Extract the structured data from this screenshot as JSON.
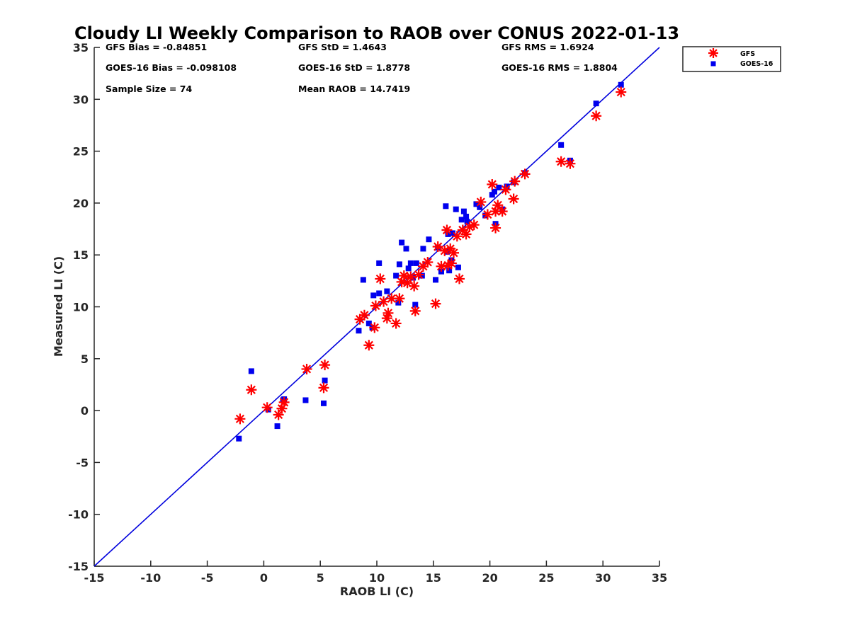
{
  "chart_data": {
    "type": "scatter",
    "title": "Cloudy LI Weekly Comparison to RAOB over CONUS 2022-01-13",
    "xlabel": "RAOB LI (C)",
    "ylabel": "Measured LI (C)",
    "xlim": [
      -15,
      35
    ],
    "ylim": [
      -15,
      35
    ],
    "xticks": [
      -15,
      -10,
      -5,
      0,
      5,
      10,
      15,
      20,
      25,
      30,
      35
    ],
    "yticks": [
      -15,
      -10,
      -5,
      0,
      5,
      10,
      15,
      20,
      25,
      30,
      35
    ],
    "grid": false,
    "legend_position": "top-right (outside axes)",
    "reference_line": {
      "x": [
        -15,
        35
      ],
      "y": [
        -15,
        35
      ],
      "color": "#0000dd"
    },
    "stats": [
      {
        "label": "GFS Bias = -0.84851"
      },
      {
        "label": "GFS StD = 1.4643"
      },
      {
        "label": "GFS RMS = 1.6924"
      },
      {
        "label": "GOES-16 Bias = -0.098108"
      },
      {
        "label": "GOES-16 StD = 1.8778"
      },
      {
        "label": "GOES-16 RMS = 1.8804"
      },
      {
        "label": "Sample Size = 74"
      },
      {
        "label": "Mean RAOB = 14.7419"
      }
    ],
    "series": [
      {
        "name": "GFS",
        "marker": "asterisk",
        "color": "#ff0000",
        "points": [
          [
            -2.1,
            -0.8
          ],
          [
            -1.1,
            2.0
          ],
          [
            0.3,
            0.3
          ],
          [
            1.3,
            -0.4
          ],
          [
            1.6,
            0.2
          ],
          [
            1.8,
            0.8
          ],
          [
            3.8,
            4.0
          ],
          [
            5.3,
            2.2
          ],
          [
            5.4,
            4.4
          ],
          [
            8.5,
            8.8
          ],
          [
            8.9,
            9.2
          ],
          [
            9.3,
            6.3
          ],
          [
            9.8,
            8.0
          ],
          [
            9.9,
            10.1
          ],
          [
            10.3,
            12.7
          ],
          [
            10.6,
            10.5
          ],
          [
            10.9,
            8.9
          ],
          [
            11.0,
            9.4
          ],
          [
            11.3,
            10.8
          ],
          [
            11.7,
            8.4
          ],
          [
            12.0,
            10.8
          ],
          [
            12.2,
            12.4
          ],
          [
            12.4,
            13.0
          ],
          [
            12.7,
            12.3
          ],
          [
            13.0,
            12.9
          ],
          [
            13.3,
            12.0
          ],
          [
            13.4,
            9.6
          ],
          [
            13.7,
            13.1
          ],
          [
            14.1,
            13.9
          ],
          [
            14.5,
            14.3
          ],
          [
            15.2,
            10.3
          ],
          [
            15.4,
            15.8
          ],
          [
            15.7,
            13.9
          ],
          [
            16.0,
            15.4
          ],
          [
            16.2,
            17.4
          ],
          [
            16.3,
            14.0
          ],
          [
            16.5,
            15.6
          ],
          [
            16.6,
            14.2
          ],
          [
            16.8,
            15.2
          ],
          [
            17.1,
            16.8
          ],
          [
            17.3,
            12.7
          ],
          [
            17.6,
            17.4
          ],
          [
            17.9,
            17.0
          ],
          [
            18.2,
            17.7
          ],
          [
            18.6,
            17.9
          ],
          [
            19.2,
            20.1
          ],
          [
            19.8,
            18.9
          ],
          [
            20.2,
            21.8
          ],
          [
            20.5,
            17.6
          ],
          [
            20.5,
            19.2
          ],
          [
            20.7,
            19.8
          ],
          [
            21.1,
            19.2
          ],
          [
            21.4,
            21.3
          ],
          [
            22.1,
            20.4
          ],
          [
            22.2,
            22.1
          ],
          [
            23.1,
            22.8
          ],
          [
            26.3,
            24.0
          ],
          [
            27.1,
            23.8
          ],
          [
            29.4,
            28.4
          ],
          [
            31.6,
            30.7
          ]
        ]
      },
      {
        "name": "GOES-16",
        "marker": "square",
        "color": "#0000ee",
        "points": [
          [
            -2.2,
            -2.7
          ],
          [
            -1.1,
            3.8
          ],
          [
            0.4,
            0.1
          ],
          [
            1.2,
            -1.5
          ],
          [
            1.7,
            1.0
          ],
          [
            1.8,
            1.1
          ],
          [
            3.7,
            1.0
          ],
          [
            5.3,
            0.7
          ],
          [
            5.4,
            2.9
          ],
          [
            8.4,
            7.7
          ],
          [
            8.8,
            12.6
          ],
          [
            9.3,
            8.4
          ],
          [
            9.6,
            8.0
          ],
          [
            9.7,
            11.1
          ],
          [
            10.2,
            14.2
          ],
          [
            10.2,
            11.3
          ],
          [
            10.9,
            11.5
          ],
          [
            11.7,
            13.0
          ],
          [
            11.9,
            10.4
          ],
          [
            12.0,
            14.1
          ],
          [
            12.2,
            16.2
          ],
          [
            12.6,
            15.6
          ],
          [
            12.8,
            13.7
          ],
          [
            13.0,
            14.2
          ],
          [
            13.2,
            12.8
          ],
          [
            13.4,
            10.2
          ],
          [
            13.5,
            14.2
          ],
          [
            14.0,
            13.0
          ],
          [
            14.1,
            15.6
          ],
          [
            14.6,
            16.5
          ],
          [
            15.2,
            12.6
          ],
          [
            15.4,
            15.7
          ],
          [
            15.7,
            13.4
          ],
          [
            16.1,
            19.7
          ],
          [
            16.2,
            15.3
          ],
          [
            16.3,
            17.0
          ],
          [
            16.4,
            13.5
          ],
          [
            16.6,
            14.5
          ],
          [
            16.7,
            17.1
          ],
          [
            17.0,
            19.4
          ],
          [
            17.2,
            13.8
          ],
          [
            17.5,
            18.4
          ],
          [
            17.7,
            19.2
          ],
          [
            17.9,
            18.7
          ],
          [
            18.0,
            18.2
          ],
          [
            18.8,
            19.9
          ],
          [
            19.1,
            19.6
          ],
          [
            19.6,
            18.8
          ],
          [
            20.2,
            20.8
          ],
          [
            20.4,
            21.1
          ],
          [
            20.5,
            18.0
          ],
          [
            20.8,
            21.5
          ],
          [
            21.1,
            19.4
          ],
          [
            21.5,
            21.6
          ],
          [
            22.1,
            22.0
          ],
          [
            23.1,
            22.9
          ],
          [
            26.3,
            25.6
          ],
          [
            27.1,
            24.1
          ],
          [
            29.4,
            29.6
          ],
          [
            31.6,
            31.4
          ]
        ]
      }
    ]
  }
}
